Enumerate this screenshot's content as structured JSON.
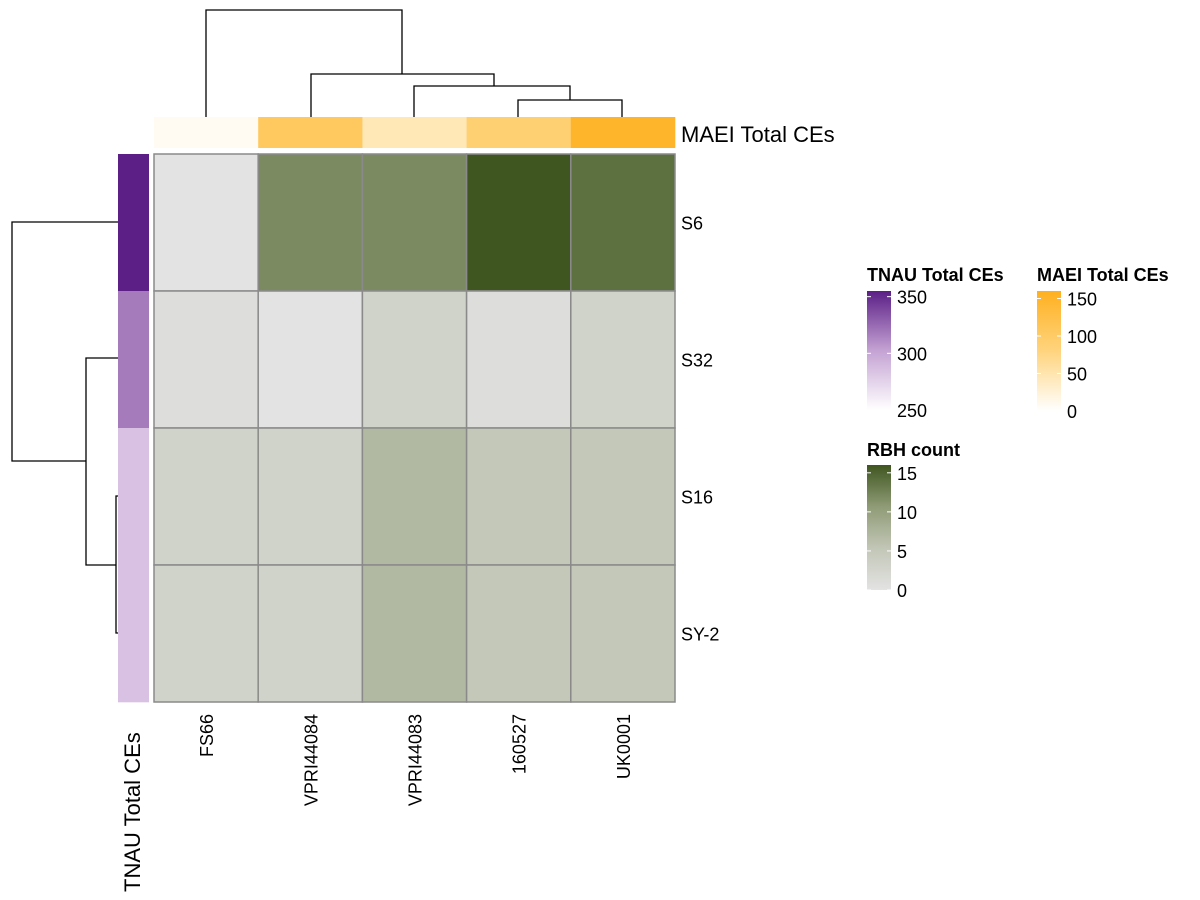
{
  "chart_data": {
    "type": "heatmap",
    "columns": [
      "FS66",
      "VPRI44084",
      "VPRI44083",
      "160527",
      "UK0001"
    ],
    "rows": [
      "S6",
      "S32",
      "S16",
      "SY-2"
    ],
    "values": [
      [
        0,
        12,
        12,
        16,
        14
      ],
      [
        1,
        0,
        3,
        1,
        3
      ],
      [
        3,
        3,
        7,
        5,
        5
      ],
      [
        3,
        3,
        7,
        5,
        5
      ]
    ],
    "top_annotation": {
      "name": "MAEI Total CEs",
      "values": [
        8,
        105,
        45,
        90,
        150
      ]
    },
    "left_annotation": {
      "name": "TNAU Total CEs",
      "values": [
        355,
        318,
        285,
        285
      ]
    },
    "legends": [
      {
        "title": "TNAU Total CEs",
        "ticks": [
          "350",
          "300",
          "250"
        ],
        "range": [
          250,
          355
        ],
        "colors": [
          "#ffffff",
          "#c4a2d3",
          "#5b1f86"
        ]
      },
      {
        "title": "MAEI Total CEs",
        "ticks": [
          "150",
          "100",
          "50",
          "0"
        ],
        "range": [
          0,
          160
        ],
        "colors": [
          "#ffffff",
          "#ffd47e",
          "#ffb01f"
        ]
      },
      {
        "title": "RBH count",
        "ticks": [
          "15",
          "10",
          "5",
          "0"
        ],
        "range": [
          0,
          16
        ],
        "colors": [
          "#e3e3e3",
          "#c2c6b6",
          "#8f9b76",
          "#3f5620"
        ]
      }
    ]
  }
}
